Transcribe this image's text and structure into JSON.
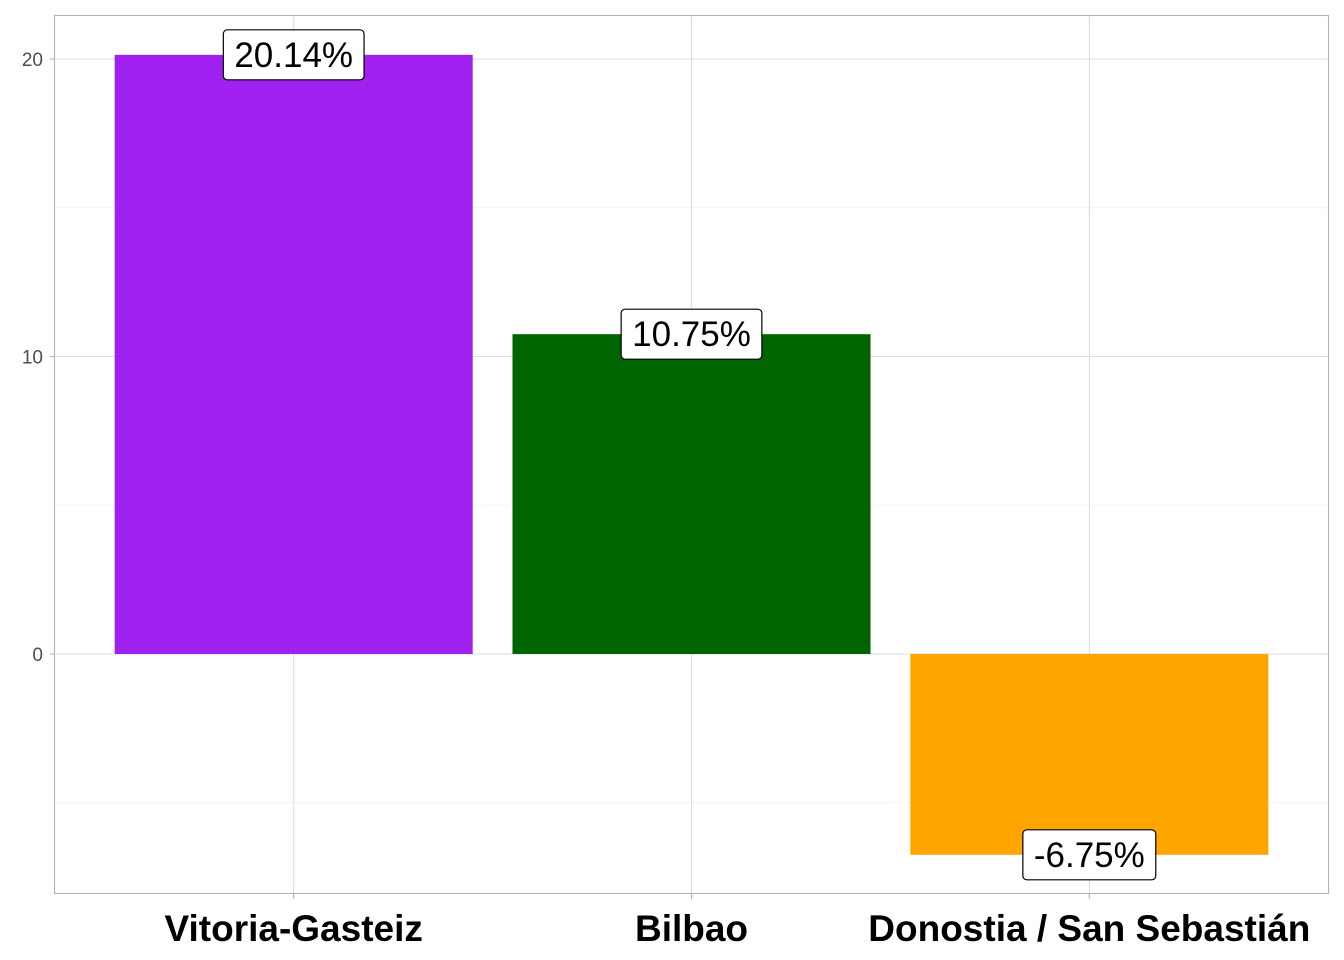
{
  "chart_data": {
    "type": "bar",
    "categories": [
      "Vitoria-Gasteiz",
      "Bilbao",
      "Donostia / San Sebastián"
    ],
    "values": [
      20.14,
      10.75,
      -6.75
    ],
    "data_labels": [
      "20.14%",
      "10.75%",
      "-6.75%"
    ],
    "colors": [
      "#a020f0",
      "#006400",
      "#ffa500"
    ],
    "title": "",
    "xlabel": "",
    "ylabel": "",
    "ylim": [
      -8.2,
      21.5
    ],
    "yticks": [
      0,
      10,
      20
    ],
    "ytick_labels": [
      "0",
      "10",
      "20"
    ],
    "grid": true,
    "legend": "none"
  }
}
